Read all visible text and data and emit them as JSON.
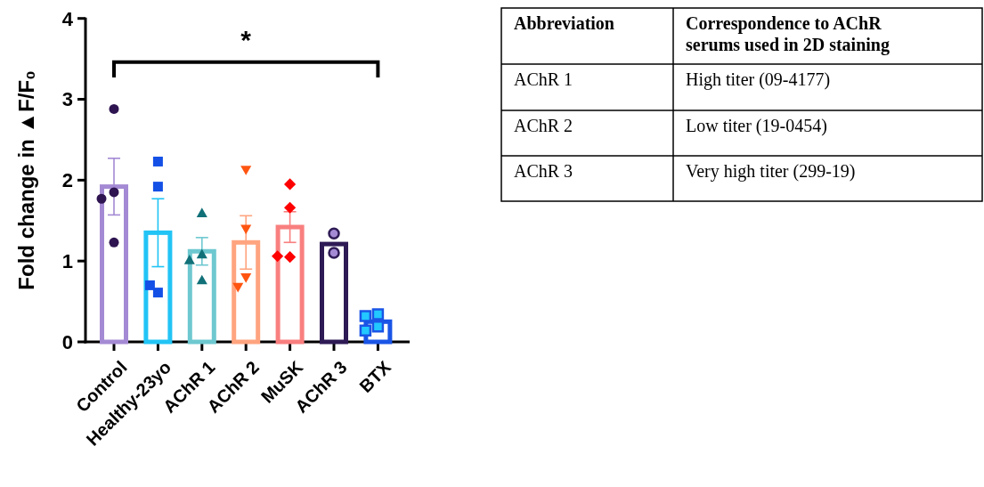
{
  "chart_data": [
    {
      "type": "bar",
      "ylabel": "Fold change in ▲F/F₀",
      "categories": [
        "Control",
        "Healthy-23yo",
        "AChR 1",
        "AChR 2",
        "MuSK",
        "AChR 3",
        "BTX"
      ],
      "ylim": [
        0,
        4
      ],
      "yticks": [
        0,
        1,
        2,
        3,
        4
      ],
      "grid": false,
      "series": [
        {
          "type": "bar",
          "values": [
            1.92,
            1.35,
            1.12,
            1.23,
            1.42,
            1.21,
            0.25
          ],
          "colors": [
            "#a48ad4",
            "#22c4f5",
            "#6ec8d0",
            "#ffa47f",
            "#f97f7f",
            "#2e1a55",
            "#1a55e6"
          ],
          "errors": [
            0.35,
            0.42,
            0.17,
            0.33,
            0.19,
            null,
            null
          ]
        },
        {
          "type": "scatter",
          "marker": "circle",
          "color": "#2e1450",
          "x": [
            "Control",
            "Control",
            "Control",
            "Control"
          ],
          "values": [
            2.88,
            1.85,
            1.77,
            1.23
          ]
        },
        {
          "type": "scatter",
          "marker": "square",
          "color": "#1450e6",
          "x": [
            "Healthy-23yo",
            "Healthy-23yo",
            "Healthy-23yo",
            "Healthy-23yo"
          ],
          "values": [
            2.23,
            1.92,
            0.61,
            0.7
          ]
        },
        {
          "type": "scatter",
          "marker": "triangle",
          "color": "#117078",
          "x": [
            "AChR 1",
            "AChR 1",
            "AChR 1",
            "AChR 1"
          ],
          "values": [
            1.59,
            1.08,
            1.01,
            0.76
          ]
        },
        {
          "type": "scatter",
          "marker": "triangle-down",
          "color": "#ff5511",
          "x": [
            "AChR 2",
            "AChR 2",
            "AChR 2",
            "AChR 2"
          ],
          "values": [
            2.13,
            1.4,
            0.8,
            0.68
          ]
        },
        {
          "type": "scatter",
          "marker": "diamond",
          "color": "#ff0000",
          "x": [
            "MuSK",
            "MuSK",
            "MuSK",
            "MuSK"
          ],
          "values": [
            1.95,
            1.66,
            1.05,
            1.06
          ]
        },
        {
          "type": "scatter",
          "marker": "circle",
          "color": "#a48ad4",
          "x": [
            "AChR 3",
            "AChR 3"
          ],
          "values": [
            1.34,
            1.1
          ]
        },
        {
          "type": "scatter",
          "marker": "square",
          "color": "#22c8ff",
          "x": [
            "BTX",
            "BTX",
            "BTX",
            "BTX"
          ],
          "values": [
            0.34,
            0.32,
            0.19,
            0.14
          ]
        }
      ],
      "annotations": [
        "*"
      ]
    },
    {
      "type": "other",
      "annotations": [
        "Abbreviation",
        "Correspondence to AChR serums used in 2D staining",
        "AChR 1",
        "High titer (09-4177)",
        "AChR 2",
        "Low titer (19-0454)",
        "AChR 3",
        "Very high titer (299-19)"
      ]
    }
  ]
}
